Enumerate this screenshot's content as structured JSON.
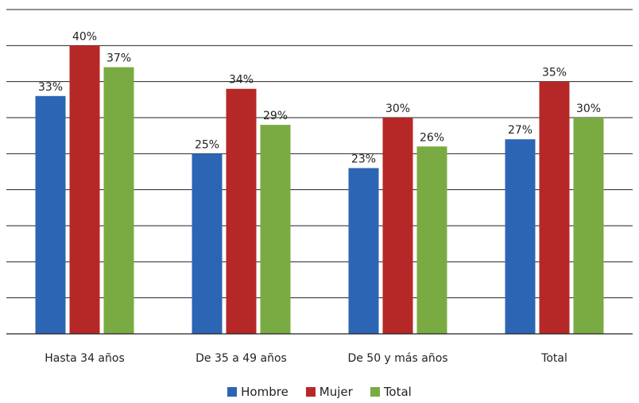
{
  "chart_data": {
    "type": "bar",
    "title": "",
    "xlabel": "",
    "ylabel": "",
    "ylim": [
      0,
      45
    ],
    "grid": true,
    "legend_position": "bottom",
    "categories": [
      "Hasta 34 años",
      "De 35 a 49 años",
      "De 50 y más años",
      "Total"
    ],
    "series": [
      {
        "name": "Hombre",
        "color": "#2c65b4",
        "values": [
          33,
          25,
          23,
          27
        ],
        "labels": [
          "33%",
          "25%",
          "23%",
          "27%"
        ]
      },
      {
        "name": "Mujer",
        "color": "#b62827",
        "values": [
          40,
          34,
          30,
          35
        ],
        "labels": [
          "40%",
          "34%",
          "30%",
          "35%"
        ]
      },
      {
        "name": "Total",
        "color": "#7aab43",
        "values": [
          37,
          29,
          26,
          30
        ],
        "labels": [
          "37%",
          "29%",
          "26%",
          "30%"
        ]
      }
    ]
  }
}
